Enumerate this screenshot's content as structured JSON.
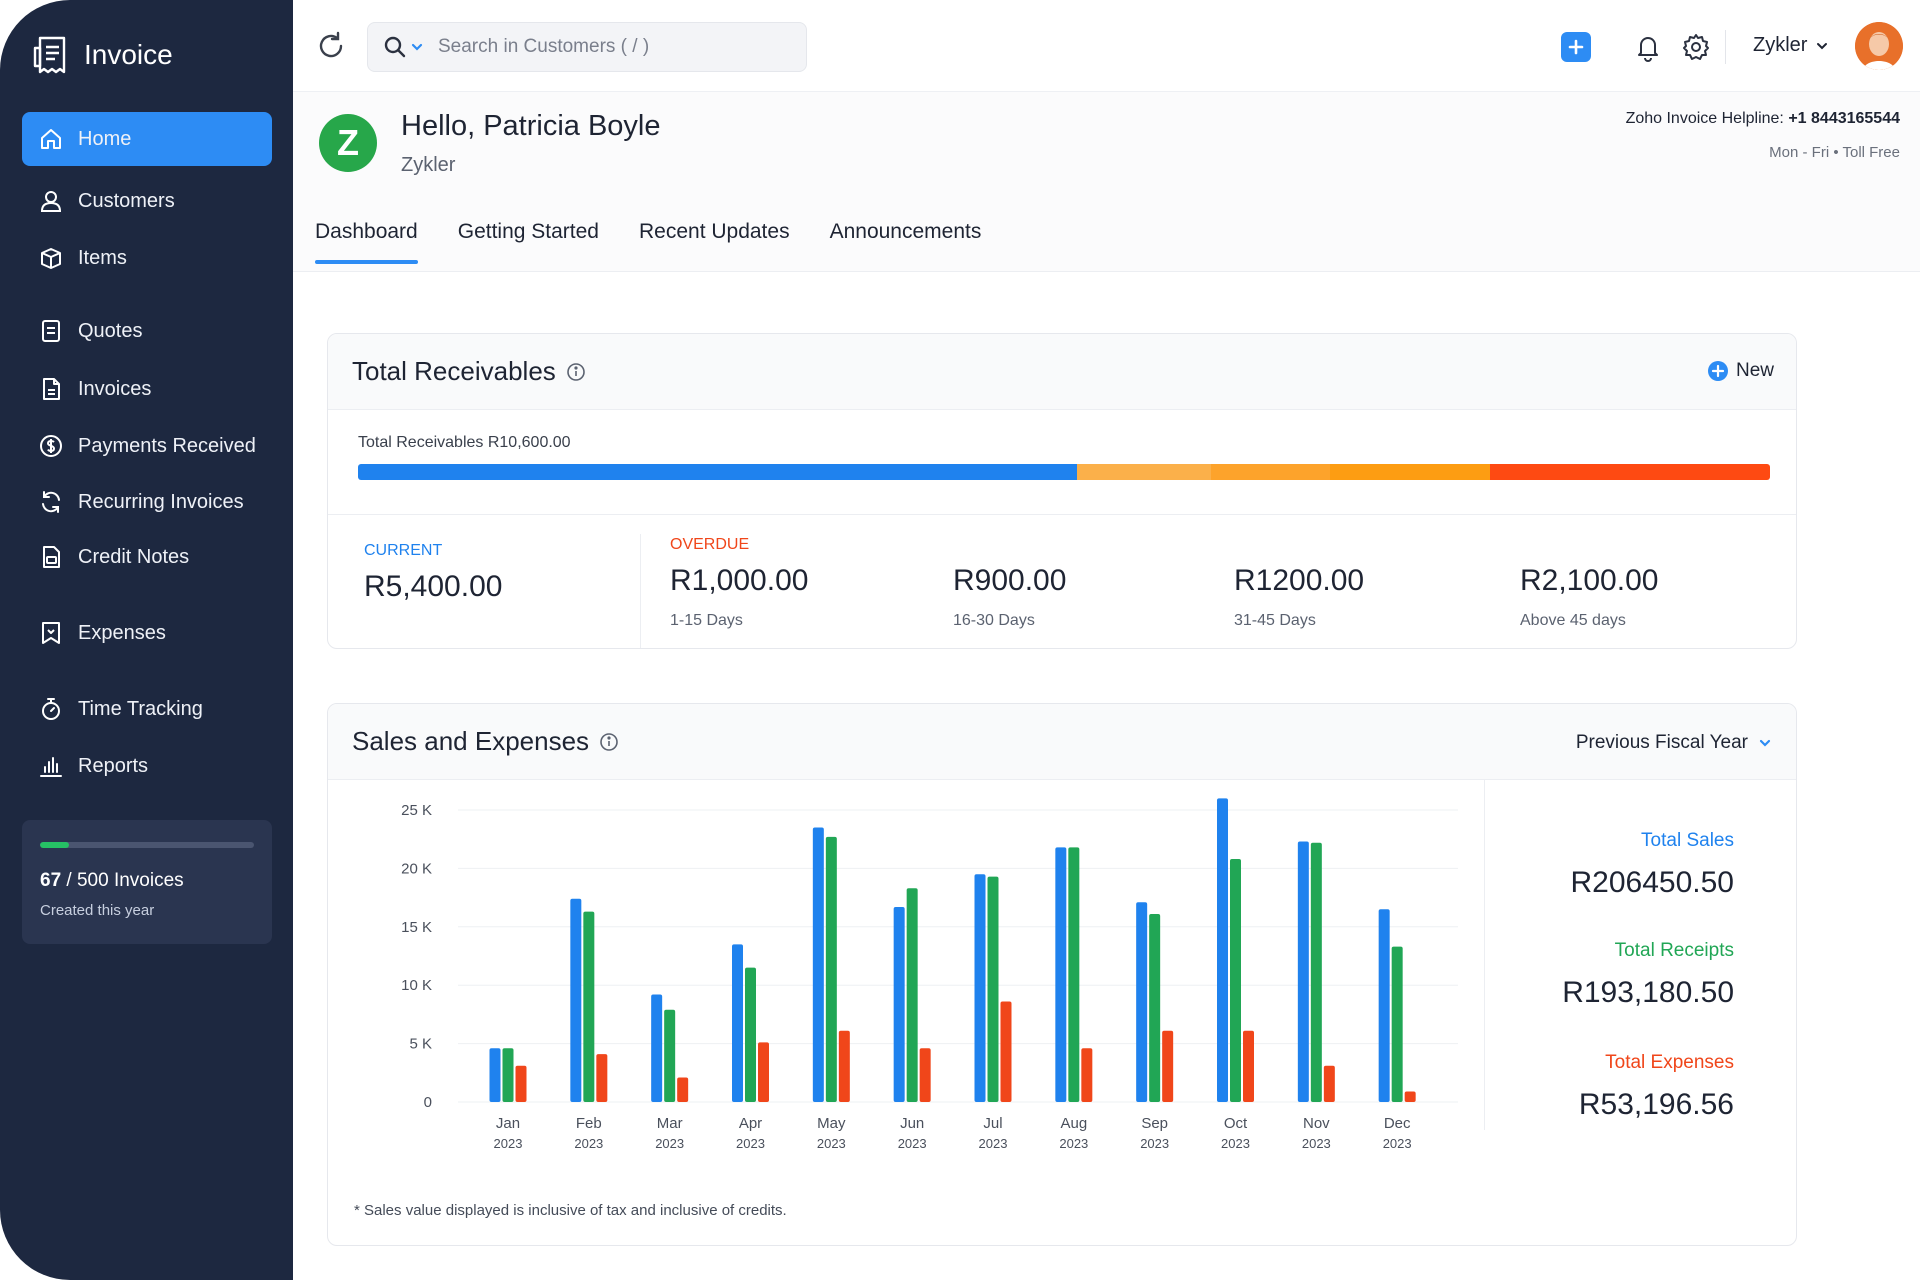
{
  "app": {
    "name": "Invoice"
  },
  "sidebar": {
    "items": [
      {
        "label": "Home",
        "icon": "home-icon"
      },
      {
        "label": "Customers",
        "icon": "user-icon"
      },
      {
        "label": "Items",
        "icon": "box-icon"
      },
      {
        "label": "Quotes",
        "icon": "quote-icon"
      },
      {
        "label": "Invoices",
        "icon": "invoice-icon"
      },
      {
        "label": "Payments Received",
        "icon": "payment-icon"
      },
      {
        "label": "Recurring Invoices",
        "icon": "recurring-icon"
      },
      {
        "label": "Credit Notes",
        "icon": "credit-note-icon"
      },
      {
        "label": "Expenses",
        "icon": "expense-icon"
      },
      {
        "label": "Time Tracking",
        "icon": "stopwatch-icon"
      },
      {
        "label": "Reports",
        "icon": "bar-chart-icon"
      }
    ],
    "usage": {
      "used": "67",
      "total_text": " / 500 Invoices",
      "sub": "Created this year",
      "fraction": 0.134
    }
  },
  "topbar": {
    "search_placeholder": "Search in Customers ( / )",
    "org_name": "Zykler"
  },
  "header": {
    "greeting": "Hello, Patricia Boyle",
    "org": "Zykler",
    "logo_letter": "Z",
    "helpline_label": "Zoho Invoice Helpline: ",
    "helpline_number": "+1 8443165544",
    "helpline_hours": "Mon - Fri • Toll Free",
    "tabs": [
      "Dashboard",
      "Getting Started",
      "Recent Updates",
      "Announcements"
    ]
  },
  "receivables": {
    "title": "Total Receivables",
    "new_label": "New",
    "total_label": "Total Receivables R10,600.00",
    "current": {
      "label": "CURRENT",
      "amount": "R5,400.00"
    },
    "overdue_label": "OVERDUE",
    "buckets": [
      {
        "amount": "R1,000.00",
        "range": "1-15 Days"
      },
      {
        "amount": "R900.00",
        "range": "16-30 Days"
      },
      {
        "amount": "R1200.00",
        "range": "31-45 Days"
      },
      {
        "amount": "R2,100.00",
        "range": "Above 45 days"
      }
    ],
    "bar_segments": [
      {
        "value": 5400,
        "color": "#1f82ee"
      },
      {
        "value": 1000,
        "color": "#fbb04a"
      },
      {
        "value": 900,
        "color": "#fda32b"
      },
      {
        "value": 1200,
        "color": "#fd9d12"
      },
      {
        "value": 2100,
        "color": "#fe4a12"
      }
    ]
  },
  "sales": {
    "title": "Sales and Expenses",
    "period": "Previous Fiscal Year",
    "totals": [
      {
        "label": "Total Sales",
        "value": "R206450.50",
        "color": "#1f82ee"
      },
      {
        "label": "Total Receipts",
        "value": "R193,180.50",
        "color": "#21a655"
      },
      {
        "label": "Total Expenses",
        "value": "R53,196.56",
        "color": "#f0461a"
      }
    ],
    "footnote": "* Sales value displayed is inclusive of tax and inclusive of credits."
  },
  "chart_data": {
    "type": "bar",
    "categories": [
      "Jan",
      "Feb",
      "Mar",
      "Apr",
      "May",
      "Jun",
      "Jul",
      "Aug",
      "Sep",
      "Oct",
      "Nov",
      "Dec"
    ],
    "category_sublabel": "2023",
    "ylim": [
      0,
      25000
    ],
    "yticks": [
      {
        "value": 0,
        "label": "0"
      },
      {
        "value": 5000,
        "label": "5 K"
      },
      {
        "value": 10000,
        "label": "10 K"
      },
      {
        "value": 15000,
        "label": "15 K"
      },
      {
        "value": 20000,
        "label": "20 K"
      },
      {
        "value": 25000,
        "label": "25 K"
      }
    ],
    "grid": true,
    "series": [
      {
        "name": "Total Sales",
        "color": "#1f82ee",
        "values": [
          4600,
          17400,
          9200,
          13500,
          23500,
          16700,
          19500,
          21800,
          17100,
          26000,
          22300,
          16500
        ]
      },
      {
        "name": "Total Receipts",
        "color": "#21a655",
        "values": [
          4600,
          16300,
          7900,
          11500,
          22700,
          18300,
          19300,
          21800,
          16100,
          20800,
          22200,
          13300
        ]
      },
      {
        "name": "Total Expenses",
        "color": "#f0461a",
        "values": [
          3100,
          4100,
          2100,
          5100,
          6100,
          4600,
          8600,
          4600,
          6100,
          6100,
          3100,
          900
        ]
      }
    ]
  }
}
